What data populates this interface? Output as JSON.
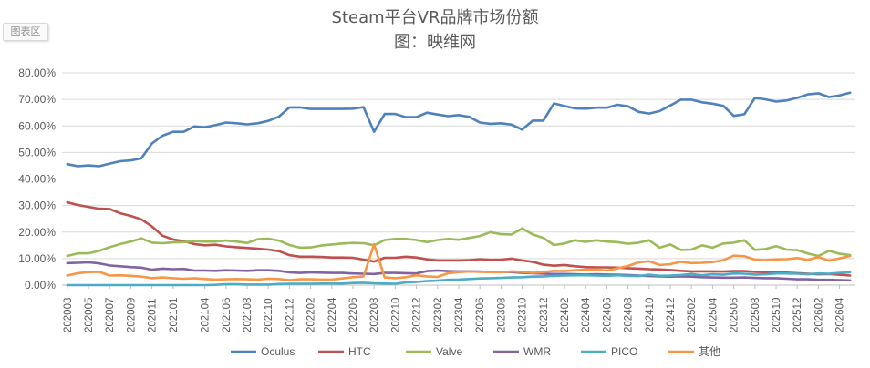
{
  "ui": {
    "chart_area_label": "图表区"
  },
  "chart_data": {
    "type": "line",
    "title": "Steam平台VR品牌市场份额",
    "subtitle": "图：映维网",
    "xlabel": "",
    "ylabel": "",
    "ylim": [
      0,
      80
    ],
    "yticks": [
      "0.00%",
      "10.00%",
      "20.00%",
      "30.00%",
      "40.00%",
      "50.00%",
      "60.00%",
      "70.00%",
      "80.00%"
    ],
    "grid": true,
    "legend_position": "bottom",
    "x": [
      "202003",
      "202004",
      "202005",
      "202006",
      "202007",
      "202008",
      "202009",
      "202010",
      "202011",
      "202012",
      "202101",
      "202102",
      "202103",
      "202104",
      "202105",
      "202106",
      "202107",
      "202108",
      "202109",
      "202110",
      "202111",
      "202112",
      "202201",
      "202202",
      "202203",
      "202204",
      "202205",
      "202206",
      "202207",
      "202208",
      "202209",
      "202210",
      "202211",
      "202212",
      "202301",
      "202302",
      "202303",
      "202304",
      "202305",
      "202306",
      "202307",
      "202308",
      "202309",
      "202310",
      "202311",
      "202312",
      "202401",
      "202402",
      "202403",
      "202404",
      "202405",
      "202406",
      "202407",
      "202408",
      "202409",
      "202410",
      "202411",
      "202412",
      "202501",
      "202502",
      "202503",
      "202504",
      "202505",
      "202506",
      "202507",
      "202508",
      "202509",
      "202510",
      "202511",
      "202512",
      "202601",
      "202602",
      "202603",
      "202604",
      "202605"
    ],
    "x_tick_labels": [
      "202003",
      "202005",
      "202007",
      "202009",
      "202011",
      "202101",
      "202104",
      "202106",
      "202108",
      "202110",
      "202112",
      "202202",
      "202204",
      "202206",
      "202208",
      "202210",
      "202212",
      "202302",
      "202304",
      "202306",
      "202308",
      "202310",
      "202312",
      "202402",
      "202404",
      "202406",
      "202408",
      "202410",
      "202412",
      "202502",
      "202504",
      "202506",
      "202508",
      "202510",
      "202512",
      "202602",
      "202604"
    ],
    "series": [
      {
        "name": "Oculus",
        "color": "#4f81bd",
        "values": [
          45.6,
          44.8,
          45.1,
          44.8,
          45.8,
          46.7,
          47.0,
          47.8,
          53.4,
          56.3,
          57.8,
          57.8,
          59.8,
          59.5,
          60.3,
          61.3,
          61.0,
          60.6,
          61.0,
          61.9,
          63.5,
          67.0,
          67.0,
          66.4,
          66.4,
          66.4,
          66.4,
          66.5,
          67.1,
          57.8,
          64.5,
          64.5,
          63.3,
          63.3,
          65.0,
          64.3,
          63.7,
          64.1,
          63.4,
          61.3,
          60.8,
          61.0,
          60.5,
          58.6,
          62.0,
          62.0,
          68.5,
          67.5,
          66.6,
          66.5,
          66.9,
          66.9,
          68.0,
          67.4,
          65.3,
          64.7,
          65.6,
          67.7,
          69.9,
          69.9,
          68.9,
          68.4,
          67.6,
          63.8,
          64.4,
          70.6,
          70.0,
          69.2,
          69.6,
          70.6,
          71.9,
          72.3,
          70.9,
          71.5,
          72.5
        ]
      },
      {
        "name": "HTC",
        "color": "#c0504d",
        "values": [
          31.2,
          30.2,
          29.5,
          28.8,
          28.7,
          27.1,
          26.1,
          24.8,
          22.1,
          18.6,
          17.2,
          16.6,
          15.5,
          15.0,
          15.2,
          14.6,
          14.3,
          14.0,
          13.7,
          13.4,
          12.8,
          11.3,
          10.7,
          10.7,
          10.6,
          10.4,
          10.4,
          10.3,
          9.6,
          8.9,
          10.3,
          10.3,
          10.7,
          10.4,
          9.7,
          9.3,
          9.3,
          9.3,
          9.4,
          9.8,
          9.5,
          9.6,
          10.0,
          9.3,
          8.8,
          7.7,
          7.3,
          7.6,
          7.1,
          6.8,
          6.7,
          6.7,
          6.6,
          6.4,
          6.2,
          6.0,
          5.9,
          5.7,
          5.4,
          5.2,
          5.2,
          5.2,
          5.1,
          5.3,
          5.3,
          5.0,
          4.9,
          4.8,
          4.7,
          4.5,
          4.3,
          4.1,
          4.2,
          3.9,
          3.6
        ]
      },
      {
        "name": "Valve",
        "color": "#9bbb59",
        "values": [
          11.0,
          12.0,
          12.0,
          12.9,
          14.3,
          15.5,
          16.4,
          17.6,
          16.0,
          15.8,
          16.1,
          16.2,
          16.6,
          16.4,
          16.4,
          16.8,
          16.4,
          15.9,
          17.3,
          17.5,
          16.8,
          15.1,
          14.1,
          14.2,
          14.9,
          15.3,
          15.7,
          15.9,
          15.8,
          15.0,
          17.0,
          17.4,
          17.4,
          17.0,
          16.2,
          17.0,
          17.4,
          17.1,
          17.8,
          18.5,
          20.0,
          19.2,
          19.1,
          21.4,
          19.1,
          17.8,
          15.1,
          15.7,
          16.9,
          16.3,
          16.9,
          16.4,
          16.2,
          15.6,
          16.0,
          16.9,
          14.1,
          15.3,
          13.3,
          13.4,
          15.0,
          14.1,
          15.7,
          16.0,
          16.9,
          13.3,
          13.6,
          14.7,
          13.4,
          13.2,
          11.9,
          11.0,
          12.9,
          11.8,
          11.3
        ]
      },
      {
        "name": "WMR",
        "color": "#8064a2",
        "values": [
          8.3,
          8.4,
          8.6,
          8.2,
          7.4,
          7.1,
          6.8,
          6.6,
          5.8,
          6.2,
          6.0,
          6.1,
          5.5,
          5.5,
          5.4,
          5.6,
          5.5,
          5.4,
          5.6,
          5.6,
          5.4,
          4.8,
          4.6,
          4.8,
          4.7,
          4.6,
          4.6,
          4.4,
          4.3,
          4.2,
          4.6,
          4.6,
          4.5,
          4.4,
          5.3,
          5.5,
          5.3,
          5.2,
          5.2,
          5.1,
          4.9,
          5.0,
          4.9,
          4.6,
          4.5,
          4.3,
          4.2,
          4.2,
          4.1,
          4.0,
          4.1,
          4.0,
          3.9,
          3.8,
          3.6,
          3.4,
          3.3,
          3.2,
          3.3,
          3.2,
          3.0,
          2.9,
          2.8,
          2.8,
          2.9,
          2.7,
          2.6,
          2.6,
          2.4,
          2.2,
          2.2,
          2.0,
          2.0,
          1.9,
          1.8
        ]
      },
      {
        "name": "PICO",
        "color": "#4bacc6",
        "values": [
          0.0,
          0.0,
          0.0,
          0.0,
          0.0,
          0.0,
          0.0,
          0.0,
          0.0,
          0.0,
          0.0,
          0.0,
          0.0,
          0.0,
          0.1,
          0.3,
          0.3,
          0.2,
          0.2,
          0.2,
          0.4,
          0.5,
          0.5,
          0.5,
          0.6,
          0.6,
          0.6,
          0.8,
          0.9,
          0.7,
          0.6,
          0.5,
          1.0,
          1.2,
          1.5,
          1.7,
          2.0,
          2.1,
          2.3,
          2.5,
          2.6,
          2.7,
          2.9,
          3.0,
          3.2,
          3.3,
          3.5,
          3.6,
          3.7,
          3.7,
          3.6,
          3.5,
          3.7,
          3.5,
          3.4,
          3.9,
          3.5,
          3.6,
          3.8,
          4.2,
          3.7,
          4.1,
          3.9,
          4.4,
          4.3,
          4.0,
          4.1,
          4.4,
          4.4,
          4.3,
          4.1,
          4.4,
          4.3,
          4.6,
          4.8
        ]
      },
      {
        "name": "其他",
        "color": "#f79646",
        "values": [
          3.6,
          4.5,
          4.9,
          5.0,
          3.6,
          3.7,
          3.5,
          3.2,
          2.6,
          2.9,
          2.6,
          2.4,
          2.6,
          2.3,
          2.1,
          2.2,
          2.3,
          2.2,
          2.1,
          2.4,
          2.3,
          1.9,
          2.2,
          2.2,
          2.1,
          2.1,
          2.5,
          3.0,
          3.3,
          15.4,
          2.9,
          2.6,
          3.0,
          3.7,
          3.3,
          3.1,
          4.5,
          4.9,
          5.1,
          5.0,
          4.9,
          4.8,
          5.2,
          5.0,
          4.6,
          4.9,
          5.4,
          5.3,
          5.6,
          5.8,
          5.9,
          5.5,
          6.3,
          7.2,
          8.6,
          9.0,
          7.6,
          7.9,
          8.8,
          8.3,
          8.4,
          8.7,
          9.4,
          11.1,
          10.9,
          9.6,
          9.4,
          9.7,
          9.8,
          10.2,
          9.5,
          10.6,
          9.2,
          10.1,
          11.0
        ]
      }
    ]
  }
}
